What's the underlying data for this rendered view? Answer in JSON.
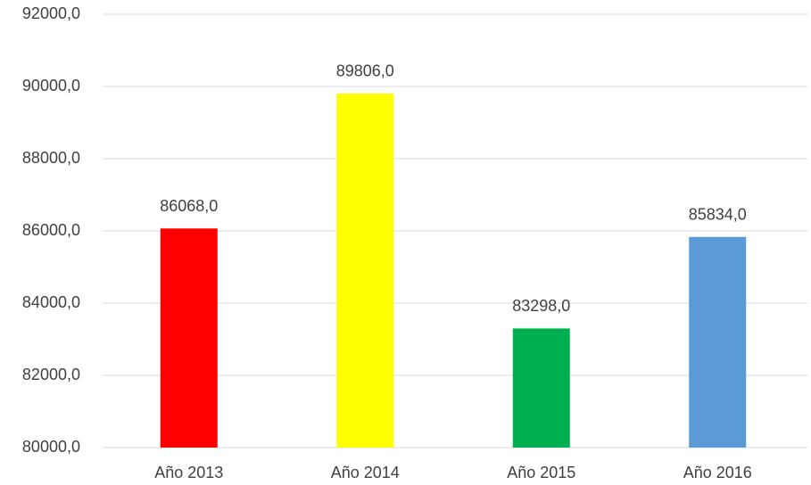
{
  "chart_data": {
    "type": "bar",
    "categories": [
      "Año 2013",
      "Año 2014",
      "Año 2015",
      "Año 2016"
    ],
    "values": [
      86068,
      89806,
      83298,
      85834
    ],
    "value_labels": [
      "86068,0",
      "89806,0",
      "83298,0",
      "85834,0"
    ],
    "colors": [
      "#ff0000",
      "#ffff00",
      "#00b050",
      "#5b9bd5"
    ],
    "ylim": [
      80000,
      92000
    ],
    "yticks": [
      {
        "value": 80000,
        "label": "80000,0"
      },
      {
        "value": 82000,
        "label": "82000,0"
      },
      {
        "value": 84000,
        "label": "84000,0"
      },
      {
        "value": 86000,
        "label": "86000,0"
      },
      {
        "value": 88000,
        "label": "88000,0"
      },
      {
        "value": 90000,
        "label": "90000,0"
      },
      {
        "value": 92000,
        "label": "92000,0"
      }
    ],
    "grid": true
  }
}
